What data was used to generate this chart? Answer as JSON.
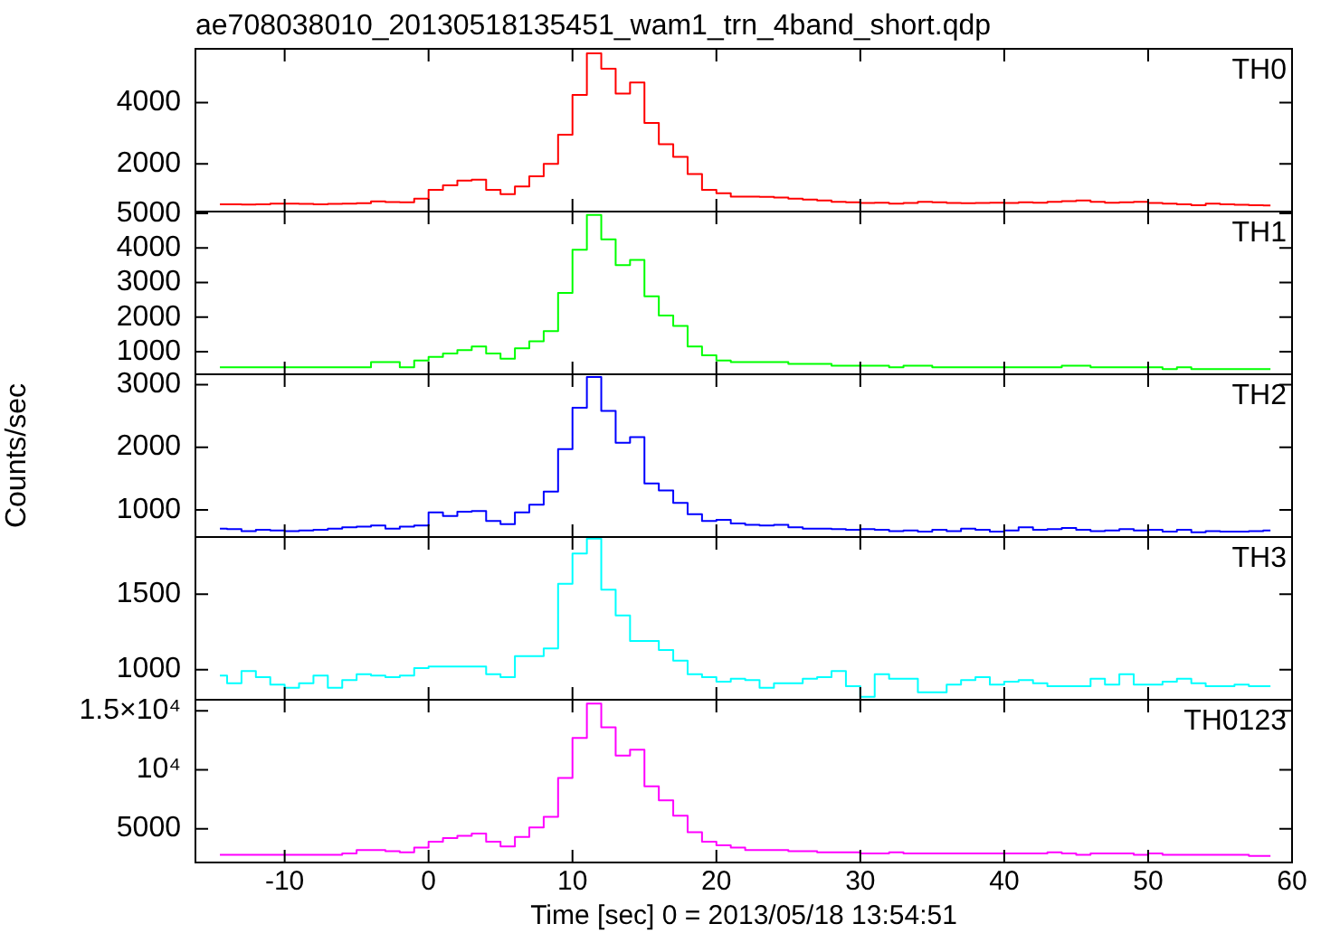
{
  "chart_data": [
    {
      "type": "step",
      "title": "ae708038010_20130518135451_wam1_trn_4band_short.qdp",
      "tick_labels": "y",
      "xlim": [
        -16.2,
        60
      ],
      "xticks": [
        -10,
        0,
        10,
        20,
        30,
        40,
        50,
        60
      ],
      "ylim": [
        440,
        5760
      ],
      "yticks": [
        2000,
        4000
      ],
      "x": [
        -14.5,
        -13.5,
        -12.5,
        -11.5,
        -10.5,
        -9.5,
        -8.5,
        -7.5,
        -6.5,
        -5.5,
        -4.5,
        -3.5,
        -2.5,
        -1.5,
        -0.5,
        0.5,
        1.5,
        2.5,
        3.5,
        4.5,
        5.5,
        6.5,
        7.5,
        8.5,
        9.5,
        10.5,
        11.5,
        12.5,
        13.5,
        14.5,
        15.5,
        16.5,
        17.5,
        18.5,
        19.5,
        20.5,
        21.5,
        22.5,
        23.5,
        24.5,
        25.5,
        26.5,
        27.5,
        28.5,
        29.5,
        30.5,
        31.5,
        32.5,
        33.5,
        34.5,
        35.5,
        36.5,
        37.5,
        38.5,
        39.5,
        40.5,
        41.5,
        42.5,
        43.5,
        44.5,
        45.5,
        46.5,
        47.5,
        48.5,
        49.5,
        50.5,
        51.5,
        52.5,
        53.5,
        54.5,
        55.5,
        56.5,
        57.5,
        58.5
      ],
      "series": [
        {
          "name": "TH0",
          "color": "#ff0000",
          "values": [
            680,
            680,
            670,
            680,
            700,
            700,
            690,
            680,
            690,
            700,
            710,
            770,
            750,
            740,
            860,
            1150,
            1300,
            1450,
            1480,
            1150,
            1010,
            1260,
            1590,
            2000,
            2950,
            4250,
            5610,
            5110,
            4300,
            4660,
            3340,
            2640,
            2230,
            1670,
            1150,
            1040,
            930,
            930,
            920,
            900,
            860,
            830,
            800,
            760,
            740,
            720,
            730,
            700,
            720,
            760,
            740,
            720,
            710,
            720,
            730,
            720,
            740,
            730,
            760,
            780,
            800,
            760,
            730,
            740,
            760,
            720,
            700,
            680,
            650,
            700,
            680,
            660,
            650,
            640
          ]
        }
      ]
    },
    {
      "type": "step",
      "tick_labels": "y",
      "xlim": [
        -16.2,
        60
      ],
      "xticks": [
        -10,
        0,
        10,
        20,
        30,
        40,
        50,
        60
      ],
      "ylim": [
        350,
        5050
      ],
      "yticks": [
        1000,
        2000,
        3000,
        4000,
        5000
      ],
      "x": [
        -14.5,
        -13.5,
        -12.5,
        -11.5,
        -10.5,
        -9.5,
        -8.5,
        -7.5,
        -6.5,
        -5.5,
        -4.5,
        -3.5,
        -2.5,
        -1.5,
        -0.5,
        0.5,
        1.5,
        2.5,
        3.5,
        4.5,
        5.5,
        6.5,
        7.5,
        8.5,
        9.5,
        10.5,
        11.5,
        12.5,
        13.5,
        14.5,
        15.5,
        16.5,
        17.5,
        18.5,
        19.5,
        20.5,
        21.5,
        22.5,
        23.5,
        24.5,
        25.5,
        26.5,
        27.5,
        28.5,
        29.5,
        30.5,
        31.5,
        32.5,
        33.5,
        34.5,
        35.5,
        36.5,
        37.5,
        38.5,
        39.5,
        40.5,
        41.5,
        42.5,
        43.5,
        44.5,
        45.5,
        46.5,
        47.5,
        48.5,
        49.5,
        50.5,
        51.5,
        52.5,
        53.5,
        54.5,
        55.5,
        56.5,
        57.5,
        58.5
      ],
      "series": [
        {
          "name": "TH1",
          "color": "#00ff00",
          "values": [
            550,
            550,
            550,
            550,
            550,
            550,
            550,
            550,
            550,
            550,
            550,
            700,
            700,
            550,
            750,
            850,
            950,
            1050,
            1150,
            950,
            800,
            1100,
            1300,
            1600,
            2700,
            3950,
            4950,
            4250,
            3500,
            3650,
            2600,
            2050,
            1750,
            1150,
            900,
            750,
            700,
            700,
            700,
            700,
            650,
            650,
            650,
            600,
            600,
            600,
            600,
            550,
            600,
            600,
            550,
            550,
            550,
            550,
            550,
            550,
            550,
            550,
            550,
            600,
            600,
            550,
            550,
            550,
            550,
            550,
            500,
            550,
            500,
            500,
            500,
            500,
            500,
            500
          ]
        }
      ]
    },
    {
      "type": "step",
      "ylabel": "Counts/sec",
      "tick_labels": "y",
      "xlim": [
        -16.2,
        60
      ],
      "xticks": [
        -10,
        0,
        10,
        20,
        30,
        40,
        50,
        60
      ],
      "ylim": [
        565,
        3165
      ],
      "yticks": [
        1000,
        2000,
        3000
      ],
      "x": [
        -14.5,
        -13.5,
        -12.5,
        -11.5,
        -10.5,
        -9.5,
        -8.5,
        -7.5,
        -6.5,
        -5.5,
        -4.5,
        -3.5,
        -2.5,
        -1.5,
        -0.5,
        0.5,
        1.5,
        2.5,
        3.5,
        4.5,
        5.5,
        6.5,
        7.5,
        8.5,
        9.5,
        10.5,
        11.5,
        12.5,
        13.5,
        14.5,
        15.5,
        16.5,
        17.5,
        18.5,
        19.5,
        20.5,
        21.5,
        22.5,
        23.5,
        24.5,
        25.5,
        26.5,
        27.5,
        28.5,
        29.5,
        30.5,
        31.5,
        32.5,
        33.5,
        34.5,
        35.5,
        36.5,
        37.5,
        38.5,
        39.5,
        40.5,
        41.5,
        42.5,
        43.5,
        44.5,
        45.5,
        46.5,
        47.5,
        48.5,
        49.5,
        50.5,
        51.5,
        52.5,
        53.5,
        54.5,
        55.5,
        56.5,
        57.5,
        58.5
      ],
      "series": [
        {
          "name": "TH2",
          "color": "#0000ff",
          "values": [
            700,
            690,
            660,
            680,
            670,
            660,
            670,
            680,
            700,
            720,
            730,
            750,
            700,
            730,
            750,
            960,
            900,
            970,
            980,
            820,
            770,
            960,
            1080,
            1290,
            1970,
            2630,
            3120,
            2580,
            2070,
            2160,
            1420,
            1310,
            1110,
            930,
            820,
            840,
            780,
            760,
            750,
            760,
            720,
            700,
            700,
            690,
            680,
            690,
            680,
            660,
            670,
            650,
            680,
            660,
            700,
            680,
            650,
            670,
            720,
            680,
            690,
            710,
            680,
            660,
            670,
            690,
            670,
            680,
            650,
            680,
            640,
            660,
            650,
            650,
            660,
            670
          ]
        }
      ]
    },
    {
      "type": "step",
      "tick_labels": "y",
      "xlim": [
        -16.2,
        60
      ],
      "xticks": [
        -10,
        0,
        10,
        20,
        30,
        40,
        50,
        60
      ],
      "ylim": [
        800,
        1880
      ],
      "yticks": [
        1000,
        1500
      ],
      "x": [
        -14.5,
        -13.5,
        -12.5,
        -11.5,
        -10.5,
        -9.5,
        -8.5,
        -7.5,
        -6.5,
        -5.5,
        -4.5,
        -3.5,
        -2.5,
        -1.5,
        -0.5,
        0.5,
        1.5,
        2.5,
        3.5,
        4.5,
        5.5,
        6.5,
        7.5,
        8.5,
        9.5,
        10.5,
        11.5,
        12.5,
        13.5,
        14.5,
        15.5,
        16.5,
        17.5,
        18.5,
        19.5,
        20.5,
        21.5,
        22.5,
        23.5,
        24.5,
        25.5,
        26.5,
        27.5,
        28.5,
        29.5,
        30.5,
        31.5,
        32.5,
        33.5,
        34.5,
        35.5,
        36.5,
        37.5,
        38.5,
        39.5,
        40.5,
        41.5,
        42.5,
        43.5,
        44.5,
        45.5,
        46.5,
        47.5,
        48.5,
        49.5,
        50.5,
        51.5,
        52.5,
        53.5,
        54.5,
        55.5,
        56.5,
        57.5,
        58.5
      ],
      "series": [
        {
          "name": "TH3",
          "color": "#00ffff",
          "values": [
            960,
            910,
            990,
            950,
            900,
            880,
            910,
            960,
            880,
            930,
            970,
            960,
            950,
            960,
            1010,
            1020,
            1020,
            1020,
            1020,
            970,
            950,
            1090,
            1090,
            1140,
            1570,
            1770,
            1870,
            1530,
            1360,
            1190,
            1190,
            1130,
            1060,
            970,
            950,
            920,
            940,
            930,
            880,
            910,
            910,
            940,
            950,
            990,
            890,
            820,
            970,
            940,
            940,
            850,
            850,
            900,
            930,
            950,
            900,
            920,
            930,
            910,
            890,
            890,
            890,
            940,
            900,
            970,
            900,
            900,
            920,
            940,
            910,
            890,
            890,
            900,
            890,
            890
          ]
        }
      ]
    },
    {
      "type": "step",
      "xlabel": "Time [sec] 0 = 2013/05/18 13:54:51",
      "xlim": [
        -16.2,
        60
      ],
      "xticks": [
        -10,
        0,
        10,
        20,
        30,
        40,
        50,
        60
      ],
      "ylim": [
        2140,
        15930
      ],
      "yticks": [
        5000,
        {
          "value": 10000,
          "label": "10⁴"
        },
        {
          "value": 15000,
          "label": "1.5×10⁴"
        }
      ],
      "x": [
        -14.5,
        -13.5,
        -12.5,
        -11.5,
        -10.5,
        -9.5,
        -8.5,
        -7.5,
        -6.5,
        -5.5,
        -4.5,
        -3.5,
        -2.5,
        -1.5,
        -0.5,
        0.5,
        1.5,
        2.5,
        3.5,
        4.5,
        5.5,
        6.5,
        7.5,
        8.5,
        9.5,
        10.5,
        11.5,
        12.5,
        13.5,
        14.5,
        15.5,
        16.5,
        17.5,
        18.5,
        19.5,
        20.5,
        21.5,
        22.5,
        23.5,
        24.5,
        25.5,
        26.5,
        27.5,
        28.5,
        29.5,
        30.5,
        31.5,
        32.5,
        33.5,
        34.5,
        35.5,
        36.5,
        37.5,
        38.5,
        39.5,
        40.5,
        41.5,
        42.5,
        43.5,
        44.5,
        45.5,
        46.5,
        47.5,
        48.5,
        49.5,
        50.5,
        51.5,
        52.5,
        53.5,
        54.5,
        55.5,
        56.5,
        57.5,
        58.5
      ],
      "series": [
        {
          "name": "TH0123",
          "color": "#ff00ff",
          "values": [
            2800,
            2800,
            2800,
            2800,
            2800,
            2800,
            2800,
            2800,
            2800,
            2900,
            3200,
            3200,
            3100,
            3000,
            3400,
            3900,
            4200,
            4400,
            4600,
            3900,
            3500,
            4300,
            5100,
            6000,
            9300,
            12700,
            15600,
            13600,
            11200,
            11700,
            8600,
            7400,
            6100,
            4700,
            3900,
            3600,
            3400,
            3200,
            3200,
            3200,
            3100,
            3100,
            3000,
            3000,
            3000,
            2900,
            2900,
            3000,
            2900,
            2900,
            2900,
            2900,
            2900,
            2900,
            2900,
            2900,
            2900,
            2900,
            3000,
            2900,
            2800,
            2900,
            2900,
            2900,
            2800,
            2900,
            2800,
            2800,
            2800,
            2800,
            2800,
            2800,
            2700,
            2700
          ]
        }
      ]
    }
  ]
}
